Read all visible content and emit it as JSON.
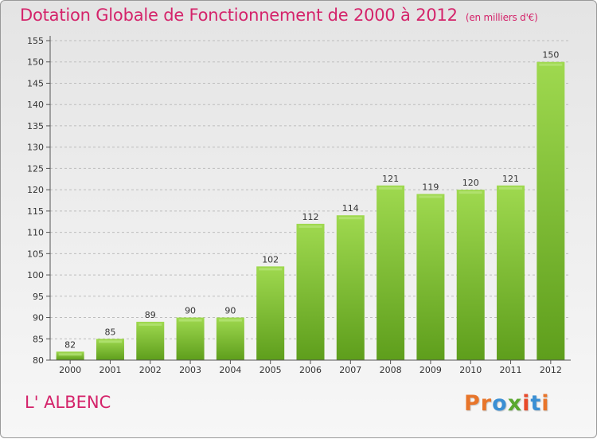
{
  "header": {
    "title": "Dotation Globale de Fonctionnement de 2000 à 2012",
    "units": "(en milliers d'€)"
  },
  "footer": {
    "commune": "L' ALBENC",
    "logo_text": "Proxiti",
    "logo_colors": [
      "#e8752a",
      "#e8752a",
      "#3a8fd4",
      "#5aa82e",
      "#e84a2a",
      "#3a8fd4"
    ]
  },
  "chart_data": {
    "type": "bar",
    "title": "Dotation Globale de Fonctionnement de 2000 à 2012",
    "categories": [
      "2000",
      "2001",
      "2002",
      "2003",
      "2004",
      "2005",
      "2006",
      "2007",
      "2008",
      "2009",
      "2010",
      "2011",
      "2012"
    ],
    "values": [
      82,
      85,
      89,
      90,
      90,
      102,
      112,
      114,
      121,
      119,
      120,
      121,
      150
    ],
    "ylim": [
      80,
      155
    ],
    "yticks": [
      80,
      85,
      90,
      95,
      100,
      105,
      110,
      115,
      120,
      125,
      130,
      135,
      140,
      145,
      150,
      155
    ],
    "grid": true,
    "bar_color": "#7cc234"
  }
}
